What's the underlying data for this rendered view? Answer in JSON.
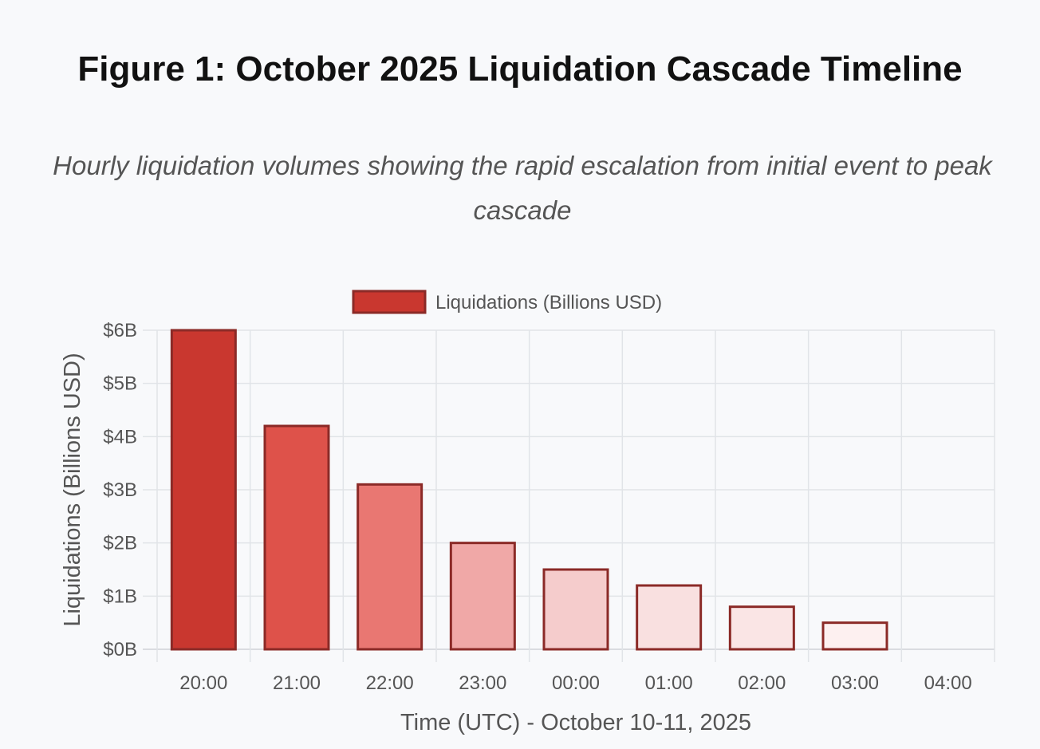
{
  "title": "Figure 1: October 2025 Liquidation Cascade Timeline",
  "subtitle": "Hourly liquidation volumes showing the rapid escalation from initial event to peak cascade",
  "chart_data": {
    "type": "bar",
    "title": "",
    "xlabel": "Time (UTC) - October 10-11, 2025",
    "ylabel": "Liquidations (Billions USD)",
    "categories": [
      "20:00",
      "21:00",
      "22:00",
      "23:00",
      "00:00",
      "01:00",
      "02:00",
      "03:00",
      "04:00"
    ],
    "series": [
      {
        "name": "Liquidations (Billions USD)",
        "values": [
          6.0,
          4.2,
          3.1,
          2.0,
          1.5,
          1.2,
          0.8,
          0.5,
          0
        ],
        "fill_colors": [
          "#c9372f",
          "#de524a",
          "#e97772",
          "#f0a8a7",
          "#f5cccc",
          "#f9e0e0",
          "#fae5e5",
          "#fdf0f0",
          "#fdf0f0"
        ],
        "border_color": "#8b2a27"
      }
    ],
    "ylim": [
      0,
      6
    ],
    "yticks": [
      0,
      1,
      2,
      3,
      4,
      5,
      6
    ],
    "ytick_labels": [
      "$0B",
      "$1B",
      "$2B",
      "$3B",
      "$4B",
      "$5B",
      "$6B"
    ],
    "grid": true,
    "legend": "top-center",
    "legend_color": "#c9372f"
  }
}
